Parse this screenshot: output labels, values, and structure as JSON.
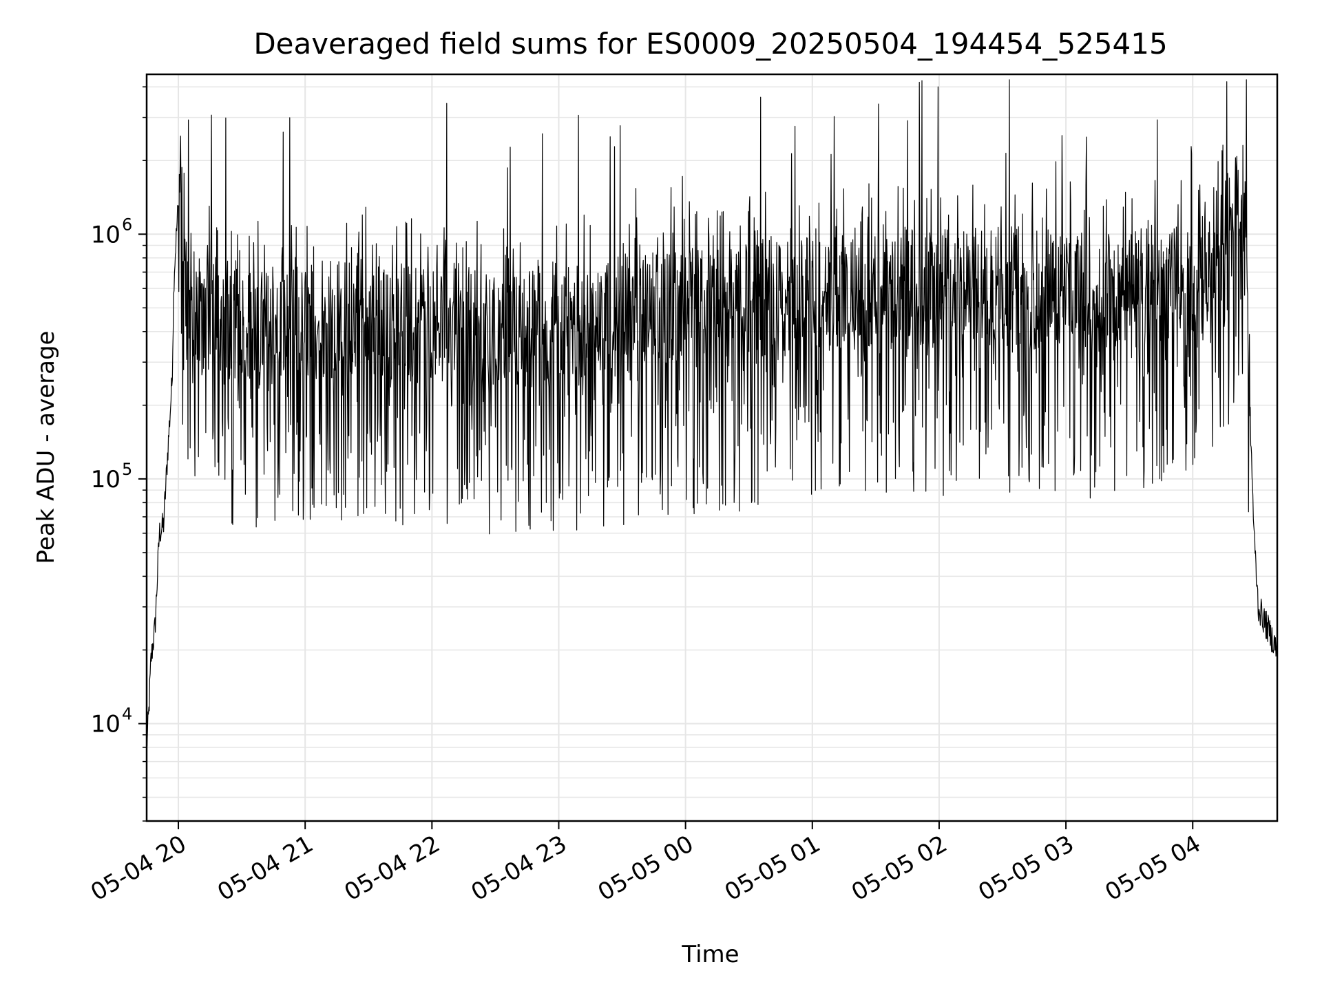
{
  "chart_data": {
    "type": "line",
    "title": "Deaveraged field sums for ES0009_20250504_194454_525415",
    "xlabel": "Time",
    "ylabel": "Peak ADU - average",
    "yscale": "log",
    "ylim": [
      4000,
      4500000
    ],
    "xlim": [
      "2025-05-04 19:45",
      "2025-05-05 04:40"
    ],
    "grid": true,
    "line_color": "#000000",
    "grid_color": "#e6e6e6",
    "x_ticks": [
      {
        "value": "2025-05-04 20:00",
        "label": "05-04 20"
      },
      {
        "value": "2025-05-04 21:00",
        "label": "05-04 21"
      },
      {
        "value": "2025-05-04 22:00",
        "label": "05-04 22"
      },
      {
        "value": "2025-05-04 23:00",
        "label": "05-04 23"
      },
      {
        "value": "2025-05-05 00:00",
        "label": "05-05 00"
      },
      {
        "value": "2025-05-05 01:00",
        "label": "05-05 01"
      },
      {
        "value": "2025-05-05 02:00",
        "label": "05-05 02"
      },
      {
        "value": "2025-05-05 03:00",
        "label": "05-05 03"
      },
      {
        "value": "2025-05-05 04:00",
        "label": "05-05 04"
      }
    ],
    "y_ticks": [
      {
        "value": 10000,
        "base": "10",
        "exp": "4"
      },
      {
        "value": 100000,
        "base": "10",
        "exp": "5"
      },
      {
        "value": 1000000,
        "base": "10",
        "exp": "6"
      }
    ],
    "series": [
      {
        "x": [
          "2025-05-04 19:45",
          "2025-05-04 19:46",
          "2025-05-04 19:47",
          "2025-05-04 19:49",
          "2025-05-04 19:51",
          "2025-05-04 19:53",
          "2025-05-04 19:55",
          "2025-05-04 19:57",
          "2025-05-04 19:58",
          "2025-05-04 20:00",
          "2025-05-04 20:01",
          "2025-05-04 20:02",
          "2025-05-04 20:03",
          "2025-05-04 20:05",
          "2025-05-04 20:45",
          "2025-05-04 21:10",
          "2025-05-04 21:30",
          "2025-05-04 21:40",
          "2025-05-04 22:05",
          "2025-05-04 22:30",
          "2025-05-04 22:35",
          "2025-05-04 23:00",
          "2025-05-04 23:35",
          "2025-05-04 23:45",
          "2025-05-05 00:10",
          "2025-05-05 01:00",
          "2025-05-05 02:00",
          "2025-05-05 02:30",
          "2025-05-05 03:00",
          "2025-05-05 03:30",
          "2025-05-05 04:10",
          "2025-05-05 04:20",
          "2025-05-05 04:25",
          "2025-05-05 04:27",
          "2025-05-05 04:29",
          "2025-05-05 04:31",
          "2025-05-05 04:35",
          "2025-05-05 04:40"
        ],
        "values": [
          8000,
          11000,
          18000,
          25000,
          60000,
          65000,
          130000,
          250000,
          700000,
          1350000,
          1600000,
          1200000,
          900000,
          500000,
          400000,
          450000,
          480000,
          420000,
          450000,
          380000,
          400000,
          420000,
          450000,
          480000,
          500000,
          550000,
          600000,
          620000,
          580000,
          600000,
          650000,
          1400000,
          1300000,
          200000,
          60000,
          30000,
          25000,
          20000
        ]
      }
    ]
  }
}
